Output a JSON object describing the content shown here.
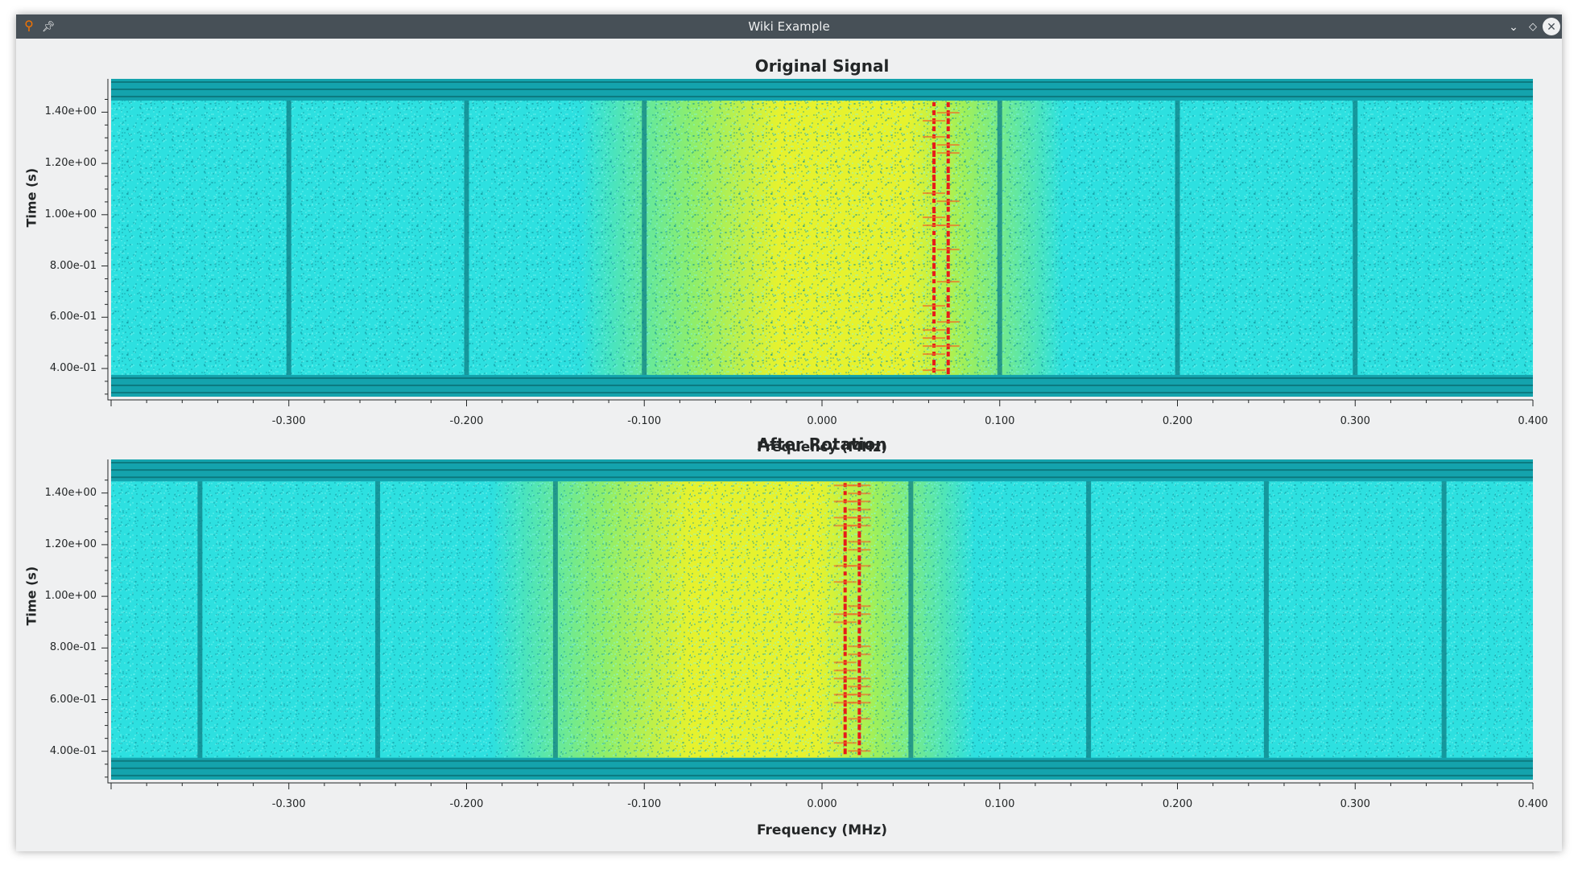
{
  "window": {
    "title": "Wiki Example",
    "icons": {
      "app": "gnuradio-icon",
      "pin": "pin-icon",
      "minimize": "chevron-down-icon",
      "maximize": "diamond-icon",
      "close": "close-icon"
    }
  },
  "colors": {
    "titlebar": "#475057",
    "low": "#14a3ad",
    "mid": "#2de0e0",
    "high": "#e6f22e",
    "peak": "#e81a1a"
  },
  "plots": [
    {
      "title": "Original Signal",
      "xlabel": "Frequency (MHz)",
      "ylabel": "Time (s)",
      "xticks": [
        "-0.300",
        "-0.200",
        "-0.100",
        "0.000",
        "0.100",
        "0.200",
        "0.300",
        "0.400"
      ],
      "xtick_values": [
        -0.3,
        -0.2,
        -0.1,
        0.0,
        0.1,
        0.2,
        0.3,
        0.4
      ],
      "yticks": [
        "1.40e+00",
        "1.20e+00",
        "1.00e+00",
        "8.00e-01",
        "6.00e-01",
        "4.00e-01"
      ],
      "ytick_values": [
        1.4,
        1.2,
        1.0,
        0.8,
        0.6,
        0.4
      ],
      "xlim": [
        -0.4,
        0.4
      ],
      "ylim": [
        0.29,
        1.53
      ],
      "band_center": 0.0,
      "tone_freqs": [
        0.063,
        0.071
      ],
      "dark_lines": [
        -0.3,
        -0.2,
        -0.1,
        0.1,
        0.2,
        0.3
      ]
    },
    {
      "title": "After Rotation",
      "xlabel": "Frequency (MHz)",
      "ylabel": "Time (s)",
      "xticks": [
        "-0.300",
        "-0.200",
        "-0.100",
        "0.000",
        "0.100",
        "0.200",
        "0.300",
        "0.400"
      ],
      "xtick_values": [
        -0.3,
        -0.2,
        -0.1,
        0.0,
        0.1,
        0.2,
        0.3,
        0.4
      ],
      "yticks": [
        "1.40e+00",
        "1.20e+00",
        "1.00e+00",
        "8.00e-01",
        "6.00e-01",
        "4.00e-01"
      ],
      "ytick_values": [
        1.4,
        1.2,
        1.0,
        0.8,
        0.6,
        0.4
      ],
      "xlim": [
        -0.4,
        0.4
      ],
      "ylim": [
        0.29,
        1.53
      ],
      "band_center": -0.05,
      "tone_freqs": [
        0.013,
        0.021
      ],
      "dark_lines": [
        -0.35,
        -0.25,
        -0.15,
        0.05,
        0.15,
        0.25,
        0.35
      ]
    }
  ]
}
